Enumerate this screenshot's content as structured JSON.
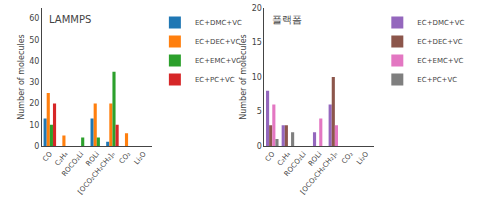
{
  "chart_data": [
    {
      "type": "bar",
      "title": "LAMMPS",
      "ylabel": "Number of molecules",
      "categories": [
        "CO",
        "C₂H₄",
        "ROCO₂Li",
        "ROLi",
        "[OCO₂CH₂CH₂]ₙ",
        "CO₂",
        "Li₂O"
      ],
      "series": [
        {
          "name": "EC+DMC+VC",
          "values": [
            13,
            0,
            0,
            13,
            2,
            0,
            0
          ]
        },
        {
          "name": "EC+DEC+VC",
          "values": [
            25,
            5,
            0,
            20,
            20,
            6,
            0
          ]
        },
        {
          "name": "EC+EMC+VC",
          "values": [
            10,
            0,
            4,
            4,
            35,
            0,
            0
          ]
        },
        {
          "name": "EC+PC+VC",
          "values": [
            20,
            0,
            0,
            0,
            10,
            0,
            0
          ]
        }
      ],
      "ylim": [
        0,
        65
      ],
      "yticks": [
        0,
        10,
        20,
        30,
        40,
        50,
        60
      ],
      "grid": false,
      "legend": "right"
    },
    {
      "type": "bar",
      "title": "플랙폼",
      "ylabel": "Number of molecules",
      "categories": [
        "CO",
        "C₂H₄",
        "ROCO₂Li",
        "ROLi",
        "[OCO₂CH₂CH₂]ₙ",
        "CO₂",
        "Li₂O"
      ],
      "series": [
        {
          "name": "EC+DMC+VC",
          "values": [
            8,
            3,
            0,
            2,
            6,
            0,
            0
          ]
        },
        {
          "name": "EC+DEC+VC",
          "values": [
            3,
            3,
            0,
            0,
            10,
            0,
            0
          ]
        },
        {
          "name": "EC+EMC+VC",
          "values": [
            6,
            0,
            0,
            4,
            3,
            0,
            0
          ]
        },
        {
          "name": "EC+PC+VC",
          "values": [
            1,
            2,
            0,
            0,
            0,
            0,
            0
          ]
        }
      ],
      "ylim": [
        0,
        20
      ],
      "yticks": [
        0,
        5,
        10,
        15,
        20
      ],
      "grid": false,
      "legend": "right"
    }
  ]
}
